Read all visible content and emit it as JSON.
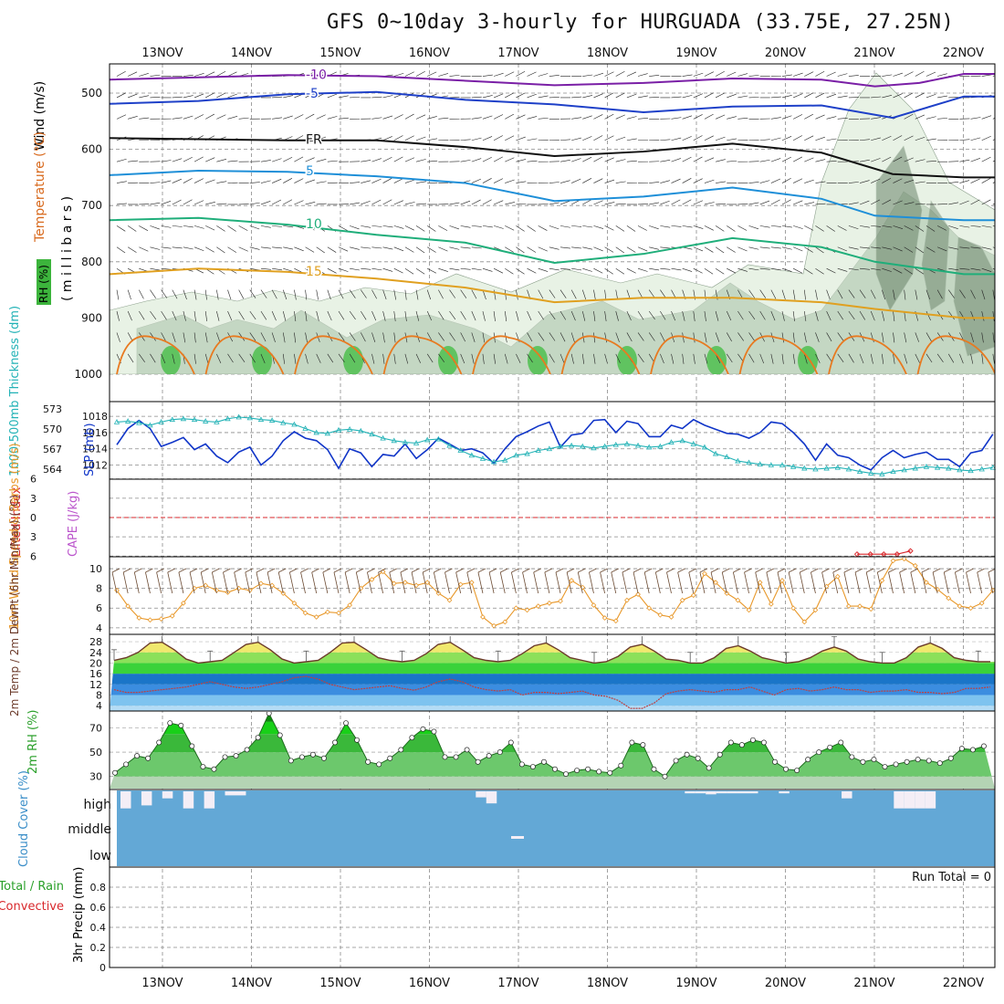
{
  "title": "GFS 0~10day 3-hourly for HURGUADA (33.75E, 27.25N)",
  "dates": [
    "13NOV",
    "14NOV",
    "15NOV",
    "16NOV",
    "17NOV",
    "18NOV",
    "19NOV",
    "20NOV",
    "21NOV",
    "22NOV"
  ],
  "colors": {
    "frame": "#000000",
    "grid": "#8a8a8a",
    "rh_light": "#e8f2e5",
    "rh_mid": "#a8c2a8",
    "rh_dark": "#5f7a5f",
    "slp": "#1035c8",
    "thickness": "#22b2b6",
    "lifted": "#d8272b",
    "cape": "#bb55cc",
    "wind": "#e8982a",
    "cloud": "#63a8d6"
  },
  "chart_data": [
    {
      "type": "contour",
      "name": "upper_air",
      "ylabel_wind": "Wind (m/s)",
      "ylabel_temp": "Temperature (°C)",
      "ylabel_rh": "RH (%)",
      "ylabel_p": "( m i l l i b a r s )",
      "y_ticks": [
        500,
        600,
        700,
        800,
        900,
        1000
      ],
      "ylim": [
        450,
        1000
      ],
      "isotherms": [
        {
          "label": "-10",
          "color": "#7a1fa6",
          "points": [
            [
              0,
              476
            ],
            [
              1,
              472
            ],
            [
              2,
              468
            ],
            [
              3,
              470
            ],
            [
              4,
              478
            ],
            [
              5,
              486
            ],
            [
              6,
              482
            ],
            [
              7,
              474
            ],
            [
              8,
              476
            ],
            [
              8.6,
              488
            ],
            [
              9.1,
              482
            ],
            [
              9.6,
              466
            ]
          ]
        },
        {
          "label": "-5",
          "color": "#1e40c8",
          "points": [
            [
              0,
              519
            ],
            [
              1,
              514
            ],
            [
              2,
              502
            ],
            [
              3,
              498
            ],
            [
              4,
              512
            ],
            [
              5,
              520
            ],
            [
              6,
              534
            ],
            [
              7,
              524
            ],
            [
              8,
              522
            ],
            [
              8.8,
              544
            ],
            [
              9.6,
              506
            ]
          ]
        },
        {
          "label": "FR",
          "color": "#111111",
          "points": [
            [
              0,
              580
            ],
            [
              1,
              582
            ],
            [
              2,
              584
            ],
            [
              3,
              584
            ],
            [
              4,
              596
            ],
            [
              5,
              612
            ],
            [
              6,
              604
            ],
            [
              7,
              590
            ],
            [
              8,
              606
            ],
            [
              8.8,
              644
            ],
            [
              9.6,
              650
            ]
          ]
        },
        {
          "label": "5",
          "color": "#1e8fd8",
          "points": [
            [
              0,
              646
            ],
            [
              1,
              638
            ],
            [
              2,
              640
            ],
            [
              3,
              648
            ],
            [
              4,
              660
            ],
            [
              5,
              692
            ],
            [
              6,
              684
            ],
            [
              7,
              668
            ],
            [
              8,
              688
            ],
            [
              8.6,
              718
            ],
            [
              9.6,
              726
            ]
          ]
        },
        {
          "label": "10",
          "color": "#1fae7a",
          "points": [
            [
              0,
              726
            ],
            [
              1,
              722
            ],
            [
              2,
              734
            ],
            [
              3,
              752
            ],
            [
              4,
              766
            ],
            [
              5,
              802
            ],
            [
              6,
              786
            ],
            [
              7,
              758
            ],
            [
              8,
              774
            ],
            [
              8.6,
              800
            ],
            [
              9.6,
              822
            ]
          ]
        },
        {
          "label": "15",
          "color": "#e0a020",
          "points": [
            [
              0,
              822
            ],
            [
              1,
              812
            ],
            [
              2,
              818
            ],
            [
              3,
              830
            ],
            [
              4,
              846
            ],
            [
              5,
              872
            ],
            [
              6,
              864
            ],
            [
              7,
              864
            ],
            [
              8,
              872
            ],
            [
              8.6,
              884
            ],
            [
              9.6,
              900
            ]
          ]
        }
      ]
    },
    {
      "type": "line",
      "name": "slp_thickness",
      "ylabel_left": "1000-500mb Thickness (dm)",
      "ylabel_right": "SLP (mb)",
      "y_ticks_left": [
        564,
        567,
        570,
        573
      ],
      "y_ticks_right": [
        1012,
        1014,
        1016,
        1018
      ],
      "ylim_right": [
        1010.5,
        1018.8
      ],
      "series": [
        {
          "name": "SLP",
          "values": [
            1014.5,
            1016.5,
            1017.5,
            1016.5,
            1014.3,
            1014.8,
            1015.4,
            1013.9,
            1014.6,
            1013.1,
            1012.3,
            1013.6,
            1014.2,
            1012.0,
            1013.1,
            1015.0,
            1016.1,
            1015.3,
            1015.0,
            1013.9,
            1011.6,
            1014.0,
            1013.5,
            1011.8,
            1013.3,
            1013.1,
            1014.6,
            1012.8,
            1013.9,
            1015.3,
            1014.6,
            1013.8,
            1014.0,
            1013.5,
            1012.2,
            1014.0,
            1015.5,
            1016.1,
            1016.8,
            1017.3,
            1014.2,
            1015.7,
            1015.9,
            1017.5,
            1017.6,
            1016.0,
            1017.4,
            1017.1,
            1015.5,
            1015.5,
            1016.9,
            1016.5,
            1017.6,
            1016.9,
            1016.4,
            1015.9,
            1015.8,
            1015.3,
            1016.0,
            1017.3,
            1017.1,
            1016.0,
            1014.6,
            1012.6,
            1014.6,
            1013.2,
            1012.9,
            1012.0,
            1011.4,
            1012.9,
            1013.8,
            1012.9,
            1013.3,
            1013.6,
            1012.7,
            1012.7,
            1011.8,
            1013.5,
            1013.8,
            1015.8
          ]
        },
        {
          "name": "Thickness",
          "values": [
            1017.3,
            1017.4,
            1017.2,
            1016.9,
            1017.3,
            1017.6,
            1017.7,
            1017.6,
            1017.4,
            1017.3,
            1017.7,
            1017.9,
            1017.8,
            1017.6,
            1017.5,
            1017.2,
            1017.0,
            1016.5,
            1016.0,
            1015.9,
            1016.3,
            1016.4,
            1016.2,
            1015.8,
            1015.3,
            1015.0,
            1014.8,
            1014.7,
            1015.1,
            1015.2,
            1014.4,
            1013.8,
            1013.2,
            1012.8,
            1012.4,
            1012.6,
            1013.2,
            1013.4,
            1013.8,
            1014.0,
            1014.3,
            1014.4,
            1014.3,
            1014.1,
            1014.3,
            1014.5,
            1014.6,
            1014.4,
            1014.2,
            1014.3,
            1014.8,
            1015.0,
            1014.6,
            1014.2,
            1013.4,
            1013.0,
            1012.5,
            1012.3,
            1012.1,
            1012.0,
            1012.0,
            1011.8,
            1011.6,
            1011.5,
            1011.6,
            1011.7,
            1011.5,
            1011.2,
            1011.0,
            1010.9,
            1011.2,
            1011.4,
            1011.6,
            1011.8,
            1011.7,
            1011.6,
            1011.4,
            1011.3,
            1011.5,
            1011.7
          ]
        }
      ]
    },
    {
      "type": "line",
      "name": "lifted_cape",
      "ylabel_red": "Lifted Index",
      "ylabel_purple": "CAPE (J/kg)",
      "y_ticks": [
        -6,
        -3,
        0,
        3,
        6
      ],
      "y_tick_labels": [
        "6",
        "3",
        "0",
        "3",
        "6"
      ],
      "ylim": [
        -6,
        6
      ],
      "series": [
        {
          "name": "Lifted Index",
          "values": [
            0
          ]
        },
        {
          "name": "Lifted Index late",
          "x": [
            8.4,
            8.55,
            8.7,
            8.85,
            9.0
          ],
          "values": [
            5.7,
            5.7,
            5.7,
            5.7,
            5.2
          ]
        }
      ]
    },
    {
      "type": "line",
      "name": "wind10m",
      "ylabel": "10m Wind Speed & Barbs (m/s)",
      "y_ticks": [
        4,
        6,
        8,
        10
      ],
      "ylim": [
        3.8,
        11.2
      ],
      "series": [
        {
          "name": "Speed",
          "values": [
            7.8,
            6.2,
            5.0,
            4.8,
            4.9,
            5.2,
            6.5,
            8.0,
            8.3,
            7.8,
            7.6,
            8.0,
            7.8,
            8.5,
            8.3,
            7.5,
            6.5,
            5.5,
            5.1,
            5.6,
            5.5,
            6.3,
            8.0,
            8.9,
            9.7,
            8.5,
            8.6,
            8.3,
            8.6,
            7.5,
            6.8,
            8.4,
            8.6,
            5.1,
            4.2,
            4.6,
            6.0,
            5.8,
            6.2,
            6.5,
            6.7,
            8.8,
            8.1,
            6.3,
            5.0,
            4.7,
            6.8,
            7.4,
            6.0,
            5.3,
            5.1,
            6.8,
            7.3,
            9.5,
            8.6,
            7.5,
            6.8,
            5.8,
            8.6,
            6.4,
            8.8,
            6.0,
            4.6,
            5.8,
            8.2,
            9.2,
            6.2,
            6.2,
            5.9,
            8.8,
            10.8,
            11.0,
            10.3,
            8.6,
            7.9,
            7.0,
            6.2,
            6.0,
            6.5,
            7.8
          ]
        }
      ]
    },
    {
      "type": "area",
      "name": "temp2m",
      "ylabel": "2m Temp / 2m DewPt (6hr Min/Max) (°C)",
      "y_ticks": [
        4,
        8,
        12,
        16,
        20,
        24,
        28
      ],
      "ylim": [
        2,
        29
      ],
      "series": [
        {
          "name": "Temp",
          "values": [
            21,
            22,
            24,
            27.5,
            27.8,
            25,
            21.5,
            20,
            20.5,
            21,
            24,
            27,
            27.8,
            25,
            21.5,
            20,
            20.5,
            21,
            24,
            27.5,
            27.8,
            25,
            22,
            21,
            20.5,
            21,
            23.5,
            27,
            27.8,
            25,
            22,
            21,
            20.5,
            21,
            23.5,
            26.5,
            27.5,
            25,
            22,
            21,
            20,
            20.5,
            22.5,
            26,
            27,
            24.5,
            21.5,
            21,
            20,
            20,
            22,
            25.5,
            26.5,
            24.5,
            22,
            21,
            20,
            20.5,
            22,
            24.5,
            26,
            24.5,
            21.5,
            20.5,
            20,
            20,
            22,
            26,
            27.5,
            25.5,
            22,
            21,
            20.5,
            20.5
          ]
        },
        {
          "name": "DewPt",
          "values": [
            10,
            9,
            9,
            9.5,
            10,
            10.5,
            11,
            12,
            13,
            12,
            11,
            10.5,
            11,
            12,
            13,
            14.5,
            15,
            14,
            12,
            11,
            10,
            10.5,
            11,
            11.5,
            10.5,
            9.8,
            11,
            13,
            14,
            13,
            11,
            10,
            9.5,
            10,
            8,
            9,
            9,
            8.5,
            9,
            9.5,
            8,
            7.5,
            6,
            3,
            3,
            5,
            8.5,
            9.5,
            10,
            9.5,
            9,
            10,
            10,
            11,
            9.5,
            8,
            10,
            10.5,
            9.5,
            10,
            11,
            10,
            10,
            9,
            9.5,
            9.5,
            10,
            9,
            9,
            8.5,
            9,
            10.5,
            10.5,
            11
          ]
        }
      ]
    },
    {
      "type": "area",
      "name": "rh2m",
      "ylabel": "2m RH (%)",
      "y_ticks": [
        30,
        50,
        70
      ],
      "ylim": [
        20,
        82
      ],
      "series": [
        {
          "name": "RH",
          "values": [
            33,
            40,
            47,
            45,
            58,
            74,
            72,
            55,
            38,
            36,
            46,
            47,
            52,
            62,
            82,
            64,
            43,
            46,
            48,
            45,
            58,
            74,
            60,
            42,
            40,
            45,
            52,
            62,
            69,
            67,
            46,
            46,
            52,
            42,
            47,
            50,
            58,
            40,
            38,
            42,
            36,
            32,
            35,
            36,
            34,
            33,
            39,
            58,
            56,
            36,
            30,
            43,
            48,
            45,
            37,
            48,
            58,
            56,
            60,
            58,
            42,
            36,
            35,
            44,
            50,
            54,
            58,
            46,
            42,
            44,
            38,
            40,
            42,
            44,
            43,
            41,
            45,
            53,
            52,
            55
          ]
        }
      ]
    },
    {
      "type": "bar",
      "name": "cloud_cover",
      "ylabel": "Cloud Cover (%)",
      "y_tick_labels": [
        "high",
        "middle",
        "low"
      ],
      "series": [
        {
          "name": "high_cloud_gap",
          "values": [
            0.85,
            0.0,
            0.7,
            0.0,
            0.35,
            0.0,
            0.85,
            0.0,
            0.85,
            0.0,
            0.2,
            0.2,
            0.0,
            0.0,
            0.0,
            0.0,
            0,
            0,
            0,
            0,
            0,
            0,
            0,
            0,
            0,
            0,
            0,
            0,
            0,
            0,
            0,
            0,
            0,
            0,
            0.3,
            0.6,
            0,
            0,
            0,
            0,
            0,
            0,
            0,
            0,
            0,
            0,
            0,
            0,
            0,
            0,
            0,
            0,
            0,
            0,
            0.1,
            0.1,
            0.15,
            0.1,
            0.1,
            0.1,
            0.1,
            0,
            0,
            0.1,
            0,
            0,
            0,
            0,
            0,
            0.35,
            0,
            0,
            0,
            0,
            0.85,
            0.85,
            0.85,
            0.85,
            0,
            0
          ]
        }
      ]
    },
    {
      "type": "bar",
      "name": "precip",
      "ylabel": "3hr Precip (mm)",
      "ylabel_total": "Total / Rain",
      "ylabel_conv": "Convective",
      "run_total_label": "Run Total =",
      "run_total": "0",
      "y_ticks": [
        0,
        0.2,
        0.4,
        0.6,
        0.8
      ],
      "ylim": [
        0,
        0.95
      ],
      "values": []
    }
  ]
}
